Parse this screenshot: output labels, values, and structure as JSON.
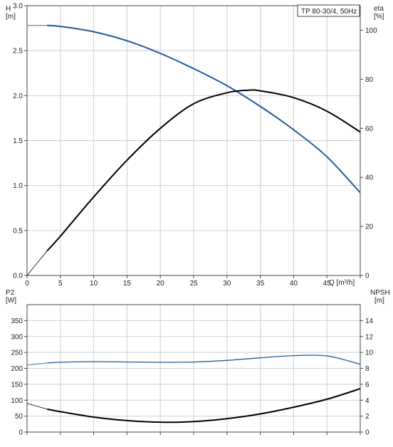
{
  "chart_data": [
    {
      "type": "line",
      "legend": "TP 80-30/4, 50Hz",
      "left_axis": {
        "label_top": "H",
        "label_unit": "[m]",
        "ylim": [
          0,
          3.0
        ],
        "ticks": [
          0.0,
          0.5,
          1.0,
          1.5,
          2.0,
          2.5,
          3.0
        ],
        "tick_labels": [
          "0.0",
          "0.5",
          "1.0",
          "1.5",
          "2.0",
          "2.5",
          "3.0"
        ]
      },
      "right_axis": {
        "label_top": "eta",
        "label_unit": "[%]",
        "ylim": [
          0,
          110
        ],
        "ticks": [
          0,
          20,
          40,
          60,
          80,
          100
        ],
        "tick_labels": [
          "0",
          "20",
          "40",
          "60",
          "80",
          "100"
        ]
      },
      "x_axis": {
        "label": "Q [m³/h]",
        "xlim": [
          0,
          50
        ],
        "ticks": [
          0,
          5,
          10,
          15,
          20,
          25,
          30,
          35,
          40,
          45
        ],
        "tick_labels": [
          "0",
          "5",
          "10",
          "15",
          "20",
          "25",
          "30",
          "35",
          "40",
          "45"
        ]
      },
      "grid": true,
      "series": [
        {
          "axis": "left",
          "color": "#1f5a96",
          "x": [
            0,
            3,
            5,
            10,
            15,
            20,
            25,
            30,
            35,
            40,
            45,
            50
          ],
          "y": [
            2.78,
            2.78,
            2.77,
            2.71,
            2.61,
            2.47,
            2.3,
            2.11,
            1.88,
            1.62,
            1.32,
            0.92
          ],
          "solid_from_x": 3
        },
        {
          "axis": "right",
          "color": "#000000",
          "x": [
            0,
            3,
            5,
            10,
            15,
            20,
            25,
            30,
            33,
            35,
            40,
            45,
            50
          ],
          "y": [
            0,
            10,
            16,
            32,
            47,
            60,
            70,
            74.5,
            75.5,
            75.3,
            72.5,
            67,
            58.5
          ],
          "solid_from_x": 3
        }
      ]
    },
    {
      "type": "line",
      "left_axis": {
        "label_top": "P2",
        "label_unit": "[W]",
        "ylim": [
          0,
          400
        ],
        "ticks": [
          0,
          50,
          100,
          150,
          200,
          250,
          300,
          350
        ],
        "tick_labels": [
          "0",
          "50",
          "100",
          "150",
          "200",
          "250",
          "300",
          "350"
        ]
      },
      "right_axis": {
        "label_top": "NPSH",
        "label_unit": "[m]",
        "ylim": [
          0,
          16
        ],
        "ticks": [
          0,
          2,
          4,
          6,
          8,
          10,
          12,
          14
        ],
        "tick_labels": [
          "0",
          "2",
          "4",
          "6",
          "8",
          "10",
          "12",
          "14"
        ]
      },
      "x_axis": {
        "xlim": [
          0,
          50
        ],
        "ticks": [
          0,
          5,
          10,
          15,
          20,
          25,
          30,
          35,
          40,
          45
        ]
      },
      "grid": true,
      "series": [
        {
          "axis": "left",
          "color": "#1f5a96",
          "x": [
            0,
            3,
            5,
            10,
            15,
            20,
            25,
            30,
            35,
            40,
            45,
            50
          ],
          "y": [
            210,
            217,
            219,
            221,
            220,
            219,
            220,
            225,
            233,
            240,
            239,
            213
          ],
          "solid_from_x": 3
        },
        {
          "axis": "left",
          "color": "#000000",
          "x": [
            0,
            3,
            5,
            10,
            15,
            20,
            25,
            30,
            35,
            40,
            45,
            50
          ],
          "y": [
            90,
            72,
            64,
            47,
            36,
            31,
            33,
            42,
            57,
            78,
            103,
            136
          ],
          "solid_from_x": 3
        }
      ]
    }
  ]
}
